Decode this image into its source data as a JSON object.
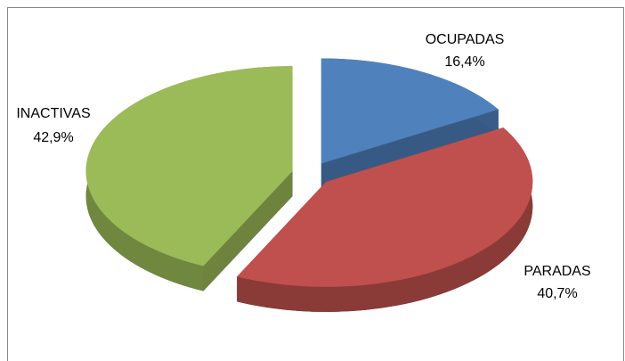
{
  "chart_data": {
    "type": "pie",
    "categories": [
      "OCUPADAS",
      "PARADAS",
      "INACTIVAS"
    ],
    "values": [
      16.4,
      40.7,
      42.9
    ],
    "value_labels": [
      "16,4%",
      "40,7%",
      "42,9%"
    ],
    "colors": [
      "#4f81bd",
      "#c0504d",
      "#9bbb59"
    ]
  }
}
